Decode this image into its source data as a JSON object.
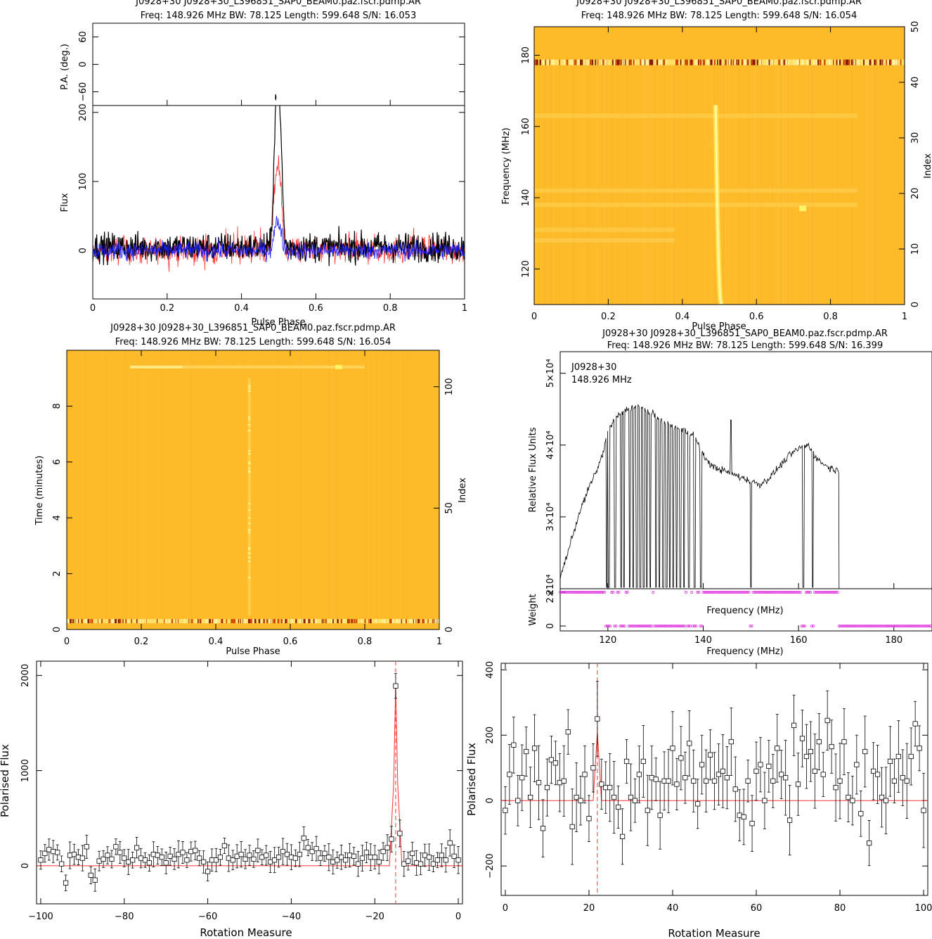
{
  "colors": {
    "black": "#000000",
    "red": "#ff3030",
    "blue": "#2020ff",
    "magenta": "#e040e0",
    "heat_bg": "#fdbb2a",
    "heat_hot": "#fff36a",
    "heat_dark": "#8a1a00"
  },
  "panels": {
    "profile": {
      "title1": "J0928+30  J0928+30_L396851_SAP0_BEAM0.paz.fscr.pdmp.AR",
      "title2": "Freq: 148.926 MHz BW: 78.125 Length: 599.648 S/N: 16.053",
      "pa_ylabel": "P.A. (deg.)",
      "ylabel": "Flux",
      "xlabel": "Pulse Phase"
    },
    "freq_phase": {
      "title1": "J0928+30  J0928+30_L396851_SAP0_BEAM0.paz.fscr.pdmp.AR",
      "title2": "Freq: 148.926 MHz BW: 78.125 Length: 599.648 S/N: 16.054",
      "ylabel": "Frequency (MHz)",
      "y2label": "Index",
      "xlabel": "Pulse Phase"
    },
    "time_phase": {
      "title1": "J0928+30  J0928+30_L396851_SAP0_BEAM0.paz.fscr.pdmp.AR",
      "title2": "Freq: 148.926 MHz BW: 78.125 Length: 599.648 S/N: 16.054",
      "ylabel": "Time (minutes)",
      "y2label": "Index",
      "xlabel": "Pulse Phase"
    },
    "bandpass": {
      "title1": "J0928+30  J0928+30_L396851_SAP0_BEAM0.paz.fscr.pdmp.AR",
      "title2": "Freq: 148.926 MHz BW: 78.125 Length: 599.648 S/N: 16.399",
      "ylabel": "Relative Flux Units",
      "weight_label": "Weight",
      "inner_xlabel": "Frequency (MHz)",
      "xlabel": "Frequency (MHz)",
      "legend1": "J0928+30",
      "legend2": "148.926 MHz"
    },
    "rm_left": {
      "ylabel": "Polarised Flux",
      "xlabel": "Rotation Measure"
    },
    "rm_right": {
      "ylabel": "Polarised Flux",
      "xlabel": "Rotation Measure"
    }
  },
  "chart_data": [
    {
      "type": "line",
      "name": "profile",
      "xlim": [
        0,
        1
      ],
      "ylim": [
        -70,
        210
      ],
      "xticks": [
        "0",
        "0.2",
        "0.4",
        "0.6",
        "0.8",
        "1"
      ],
      "yticks": [
        "0",
        "100",
        "200"
      ],
      "pa_ylim": [
        -90,
        90
      ],
      "pa_yticks": [
        "−60",
        "0",
        "60"
      ],
      "pa_point": {
        "x": 0.492,
        "y": -72
      },
      "peak": {
        "x": 0.49,
        "y": 200
      },
      "noise_rms": 15,
      "series": [
        {
          "color": "black"
        },
        {
          "color": "red"
        },
        {
          "color": "blue"
        }
      ]
    },
    {
      "type": "heatmap",
      "name": "freq_phase",
      "xlim": [
        0,
        1
      ],
      "ylim": [
        110,
        188
      ],
      "y2lim": [
        0,
        50
      ],
      "xticks": [
        "0",
        "0.2",
        "0.4",
        "0.6",
        "0.8",
        "1"
      ],
      "yticks": [
        "120",
        "140",
        "160",
        "180"
      ],
      "y2ticks": [
        "0",
        "10",
        "20",
        "30",
        "40",
        "50"
      ],
      "pulse_phase_low_freq": 0.505,
      "pulse_phase_high_freq": 0.49,
      "bright_band_freq": 178,
      "hot_spot": {
        "x": 0.725,
        "y": 137
      }
    },
    {
      "type": "heatmap",
      "name": "time_phase",
      "xlim": [
        0,
        1
      ],
      "ylim": [
        0,
        10
      ],
      "y2lim": [
        0,
        115
      ],
      "xticks": [
        "0",
        "0.2",
        "0.4",
        "0.6",
        "0.8",
        "1"
      ],
      "yticks": [
        "0",
        "2",
        "4",
        "6",
        "8"
      ],
      "y2ticks": [
        "0",
        "50",
        "100"
      ],
      "pulse_phase": 0.49,
      "bright_row_time": 0.3,
      "top_row_time": 9.4,
      "hot_spot": {
        "x": 0.73,
        "y": 9.4
      }
    },
    {
      "type": "line",
      "name": "bandpass",
      "xlim": [
        110,
        188
      ],
      "ylim": [
        20000,
        53000
      ],
      "xticks": [
        "120",
        "140",
        "160",
        "180"
      ],
      "yticks": [
        "2×10⁴",
        "3×10⁴",
        "4×10⁴",
        "5×10⁴"
      ],
      "weight_ylim": [
        0,
        2
      ],
      "weight_yticks": [
        "0",
        "2"
      ],
      "x": [
        110,
        112,
        114,
        116,
        118,
        119,
        120,
        122,
        124,
        126,
        128,
        130,
        132,
        134,
        136,
        138,
        140,
        142,
        144,
        146,
        148,
        150,
        152,
        154,
        156,
        158,
        160,
        162,
        164,
        166,
        168,
        168.5
      ],
      "y": [
        21500,
        26000,
        30500,
        34000,
        37000,
        39000,
        42000,
        44000,
        45000,
        45500,
        45000,
        44000,
        43000,
        42500,
        42000,
        41500,
        38500,
        37000,
        36500,
        36000,
        35500,
        35000,
        34500,
        35500,
        37000,
        38500,
        39500,
        40000,
        38000,
        37000,
        36500,
        36500
      ],
      "dropouts": [
        119.8,
        120.2,
        121.5,
        122.8,
        123.4,
        124.6,
        125.3,
        126.1,
        126.8,
        127.5,
        128.2,
        128.9,
        130.1,
        130.8,
        131.6,
        132.3,
        133.0,
        133.7,
        134.4,
        135.2,
        136.0,
        137.0,
        138.2,
        139.5,
        150.0,
        161.0,
        163.0
      ],
      "spike": {
        "x": 145.8,
        "y": 43500
      }
    },
    {
      "type": "scatter",
      "name": "rm_left",
      "xlim": [
        -101,
        1
      ],
      "ylim": [
        -400,
        2150
      ],
      "xticks": [
        "−100",
        "−80",
        "−60",
        "−40",
        "−20",
        "0"
      ],
      "yticks": [
        "0",
        "1000",
        "2000"
      ],
      "peak_rm": -15,
      "points": [
        [
          -100,
          60
        ],
        [
          -99,
          130
        ],
        [
          -98,
          170
        ],
        [
          -97,
          150
        ],
        [
          -96,
          140
        ],
        [
          -95,
          20
        ],
        [
          -94,
          -180
        ],
        [
          -93,
          110
        ],
        [
          -92,
          120
        ],
        [
          -91,
          90
        ],
        [
          -90,
          80
        ],
        [
          -89,
          200
        ],
        [
          -88,
          -100
        ],
        [
          -87,
          -150
        ],
        [
          -86,
          50
        ],
        [
          -85,
          70
        ],
        [
          -84,
          110
        ],
        [
          -83,
          70
        ],
        [
          -82,
          200
        ],
        [
          -81,
          140
        ],
        [
          -80,
          80
        ],
        [
          -79,
          40
        ],
        [
          -78,
          60
        ],
        [
          -77,
          190
        ],
        [
          -76,
          80
        ],
        [
          -75,
          60
        ],
        [
          -74,
          30
        ],
        [
          -73,
          120
        ],
        [
          -72,
          110
        ],
        [
          -71,
          90
        ],
        [
          -70,
          30
        ],
        [
          -69,
          100
        ],
        [
          -68,
          70
        ],
        [
          -67,
          120
        ],
        [
          -66,
          140
        ],
        [
          -65,
          60
        ],
        [
          -64,
          150
        ],
        [
          -63,
          160
        ],
        [
          -62,
          80
        ],
        [
          -61,
          40
        ],
        [
          -60,
          -60
        ],
        [
          -59,
          60
        ],
        [
          -58,
          60
        ],
        [
          -57,
          90
        ],
        [
          -56,
          210
        ],
        [
          -55,
          80
        ],
        [
          -54,
          60
        ],
        [
          -53,
          100
        ],
        [
          -52,
          120
        ],
        [
          -51,
          70
        ],
        [
          -50,
          110
        ],
        [
          -49,
          70
        ],
        [
          -48,
          160
        ],
        [
          -47,
          90
        ],
        [
          -46,
          110
        ],
        [
          -45,
          40
        ],
        [
          -44,
          60
        ],
        [
          -43,
          90
        ],
        [
          -42,
          150
        ],
        [
          -41,
          120
        ],
        [
          -40,
          90
        ],
        [
          -39,
          80
        ],
        [
          -38,
          120
        ],
        [
          -37,
          290
        ],
        [
          -36,
          190
        ],
        [
          -35,
          150
        ],
        [
          -34,
          180
        ],
        [
          -33,
          80
        ],
        [
          -32,
          130
        ],
        [
          -31,
          90
        ],
        [
          -30,
          40
        ],
        [
          -29,
          60
        ],
        [
          -28,
          90
        ],
        [
          -27,
          60
        ],
        [
          -26,
          110
        ],
        [
          -25,
          100
        ],
        [
          -24,
          20
        ],
        [
          -23,
          80
        ],
        [
          -22,
          140
        ],
        [
          -21,
          90
        ],
        [
          -20,
          90
        ],
        [
          -19,
          40
        ],
        [
          -18,
          150
        ],
        [
          -17,
          190
        ],
        [
          -16,
          280
        ],
        [
          -15,
          1890
        ],
        [
          -14,
          340
        ],
        [
          -13,
          20
        ],
        [
          -12,
          50
        ],
        [
          -11,
          130
        ],
        [
          -10,
          30
        ],
        [
          -9,
          20
        ],
        [
          -8,
          110
        ],
        [
          -7,
          90
        ],
        [
          -6,
          20
        ],
        [
          -5,
          60
        ],
        [
          -4,
          110
        ],
        [
          -3,
          60
        ],
        [
          -2,
          240
        ],
        [
          -1,
          100
        ],
        [
          0,
          60
        ]
      ],
      "fit": [
        [
          -101,
          0
        ],
        [
          -16.5,
          0
        ],
        [
          -15.5,
          850
        ],
        [
          -15,
          1900
        ],
        [
          -14.5,
          850
        ],
        [
          -13.5,
          0
        ],
        [
          1,
          0
        ]
      ],
      "err": 110
    },
    {
      "type": "scatter",
      "name": "rm_right",
      "xlim": [
        -1,
        101
      ],
      "ylim": [
        -290,
        420
      ],
      "xticks": [
        "0",
        "20",
        "40",
        "60",
        "80",
        "100"
      ],
      "yticks": [
        "−200",
        "0",
        "200",
        "400"
      ],
      "peak_rm": 22,
      "points": [
        [
          0,
          -30
        ],
        [
          1,
          80
        ],
        [
          2,
          170
        ],
        [
          3,
          0
        ],
        [
          4,
          70
        ],
        [
          5,
          150
        ],
        [
          6,
          10
        ],
        [
          7,
          160
        ],
        [
          8,
          55
        ],
        [
          9,
          -85
        ],
        [
          10,
          40
        ],
        [
          11,
          125
        ],
        [
          12,
          115
        ],
        [
          13,
          55
        ],
        [
          14,
          60
        ],
        [
          15,
          210
        ],
        [
          16,
          -80
        ],
        [
          17,
          10
        ],
        [
          18,
          0
        ],
        [
          19,
          80
        ],
        [
          20,
          -55
        ],
        [
          21,
          100
        ],
        [
          22,
          250
        ],
        [
          23,
          50
        ],
        [
          24,
          40
        ],
        [
          25,
          40
        ],
        [
          26,
          10
        ],
        [
          27,
          -20
        ],
        [
          28,
          -110
        ],
        [
          29,
          120
        ],
        [
          30,
          10
        ],
        [
          31,
          0
        ],
        [
          32,
          80
        ],
        [
          33,
          120
        ],
        [
          34,
          -30
        ],
        [
          35,
          70
        ],
        [
          36,
          65
        ],
        [
          37,
          -45
        ],
        [
          38,
          60
        ],
        [
          39,
          60
        ],
        [
          40,
          160
        ],
        [
          41,
          50
        ],
        [
          42,
          130
        ],
        [
          43,
          70
        ],
        [
          44,
          175
        ],
        [
          45,
          60
        ],
        [
          46,
          -10
        ],
        [
          47,
          110
        ],
        [
          48,
          60
        ],
        [
          49,
          140
        ],
        [
          50,
          60
        ],
        [
          51,
          80
        ],
        [
          52,
          90
        ],
        [
          53,
          70
        ],
        [
          54,
          180
        ],
        [
          55,
          35
        ],
        [
          56,
          -45
        ],
        [
          57,
          -50
        ],
        [
          58,
          60
        ],
        [
          59,
          -70
        ],
        [
          60,
          90
        ],
        [
          61,
          110
        ],
        [
          62,
          0
        ],
        [
          63,
          105
        ],
        [
          64,
          60
        ],
        [
          65,
          160
        ],
        [
          66,
          80
        ],
        [
          67,
          70
        ],
        [
          68,
          -60
        ],
        [
          69,
          230
        ],
        [
          70,
          50
        ],
        [
          71,
          190
        ],
        [
          72,
          135
        ],
        [
          73,
          150
        ],
        [
          74,
          90
        ],
        [
          75,
          180
        ],
        [
          76,
          80
        ],
        [
          77,
          245
        ],
        [
          78,
          165
        ],
        [
          79,
          40
        ],
        [
          80,
          60
        ],
        [
          81,
          180
        ],
        [
          82,
          10
        ],
        [
          83,
          0
        ],
        [
          84,
          110
        ],
        [
          85,
          -40
        ],
        [
          86,
          150
        ],
        [
          87,
          -130
        ],
        [
          88,
          90
        ],
        [
          89,
          80
        ],
        [
          90,
          10
        ],
        [
          91,
          0
        ],
        [
          92,
          120
        ],
        [
          93,
          60
        ],
        [
          94,
          135
        ],
        [
          95,
          70
        ],
        [
          96,
          60
        ],
        [
          97,
          135
        ],
        [
          98,
          235
        ],
        [
          99,
          160
        ],
        [
          100,
          -30
        ]
      ],
      "fit": [
        [
          -1,
          0
        ],
        [
          21,
          0
        ],
        [
          22,
          210
        ],
        [
          23,
          0
        ],
        [
          101,
          0
        ]
      ],
      "err": 90
    }
  ]
}
